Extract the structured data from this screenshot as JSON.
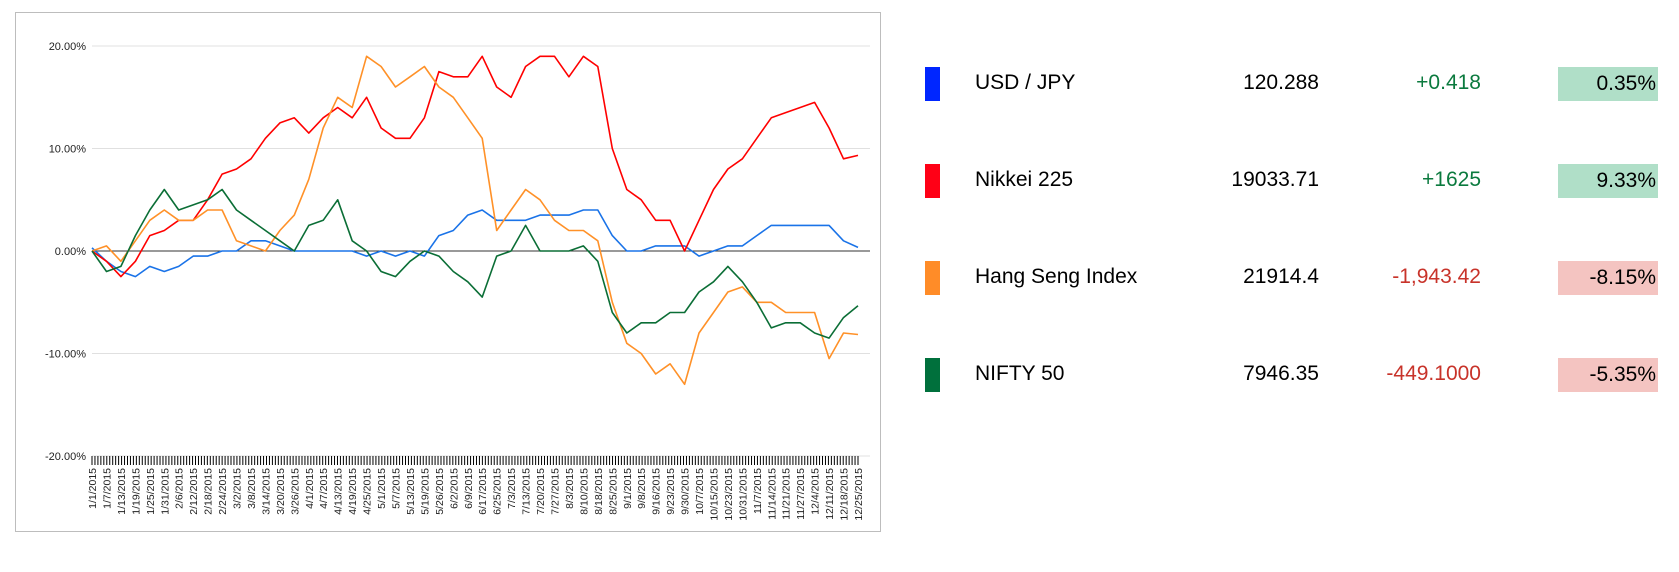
{
  "chart_data": {
    "type": "line",
    "title": "",
    "xlabel": "",
    "ylabel": "",
    "ylim": [
      -20,
      20
    ],
    "y_ticks": [
      "20.00%",
      "10.00%",
      "0.00%",
      "-10.00%",
      "-20.00%"
    ],
    "grid": true,
    "x": [
      "1/1/2015",
      "1/7/2015",
      "1/13/2015",
      "1/19/2015",
      "1/25/2015",
      "1/31/2015",
      "2/6/2015",
      "2/12/2015",
      "2/18/2015",
      "2/24/2015",
      "3/2/2015",
      "3/8/2015",
      "3/14/2015",
      "3/20/2015",
      "3/26/2015",
      "4/1/2015",
      "4/7/2015",
      "4/13/2015",
      "4/19/2015",
      "4/25/2015",
      "5/1/2015",
      "5/7/2015",
      "5/13/2015",
      "5/19/2015",
      "5/26/2015",
      "6/2/2015",
      "6/9/2015",
      "6/17/2015",
      "6/25/2015",
      "7/3/2015",
      "7/13/2015",
      "7/20/2015",
      "7/27/2015",
      "8/3/2015",
      "8/10/2015",
      "8/18/2015",
      "8/25/2015",
      "9/1/2015",
      "9/8/2015",
      "9/16/2015",
      "9/23/2015",
      "9/30/2015",
      "10/7/2015",
      "10/15/2015",
      "10/23/2015",
      "10/31/2015",
      "11/7/2015",
      "11/14/2015",
      "11/21/2015",
      "11/27/2015",
      "12/4/2015",
      "12/11/2015",
      "12/18/2015",
      "12/25/2015"
    ],
    "series": [
      {
        "name": "USD / JPY",
        "color": "#1a73e8",
        "values": [
          0.3,
          -1,
          -2,
          -2.5,
          -1.5,
          -2,
          -1.5,
          -0.5,
          -0.5,
          0,
          0,
          1,
          1,
          0.5,
          0,
          0,
          0,
          0,
          0,
          -0.5,
          0,
          -0.5,
          0,
          -0.5,
          1.5,
          2,
          3.5,
          4,
          3,
          3,
          3,
          3.5,
          3.5,
          3.5,
          4,
          4,
          1.5,
          0,
          0,
          0.5,
          0.5,
          0.5,
          -0.5,
          0,
          0.5,
          0.5,
          1.5,
          2.5,
          2.5,
          2.5,
          2.5,
          2.5,
          1,
          0.35
        ]
      },
      {
        "name": "Nikkei 225",
        "color": "#ff0000",
        "values": [
          0,
          -1,
          -2.5,
          -1,
          1.5,
          2,
          3,
          3,
          5,
          7.5,
          8,
          9,
          11,
          12.5,
          13,
          11.5,
          13,
          14,
          13,
          15,
          12,
          11,
          11,
          13,
          17.5,
          17,
          17,
          19,
          16,
          15,
          18,
          19,
          19,
          17,
          19,
          18,
          10,
          6,
          5,
          3,
          3,
          0,
          3,
          6,
          8,
          9,
          11,
          13,
          13.5,
          14,
          14.5,
          12,
          9,
          9.33
        ]
      },
      {
        "name": "Hang Seng Index",
        "color": "#ff9128",
        "values": [
          0,
          0.5,
          -1,
          1,
          3,
          4,
          3,
          3,
          4,
          4,
          1,
          0.5,
          0,
          2,
          3.5,
          7,
          12,
          15,
          14,
          19,
          18,
          16,
          17,
          18,
          16,
          15,
          13,
          11,
          2,
          4,
          6,
          5,
          3,
          2,
          2,
          1,
          -5,
          -9,
          -10,
          -12,
          -11,
          -13,
          -8,
          -6,
          -4,
          -3.5,
          -5,
          -5,
          -6,
          -6,
          -6,
          -10.5,
          -8,
          -8.15
        ]
      },
      {
        "name": "NIFTY 50",
        "color": "#0b6e36",
        "values": [
          0,
          -2,
          -1.5,
          1.5,
          4,
          6,
          4,
          4.5,
          5,
          6,
          4,
          3,
          2,
          1,
          0,
          2.5,
          3,
          5,
          1,
          0,
          -2,
          -2.5,
          -1,
          0,
          -0.5,
          -2,
          -3,
          -4.5,
          -0.5,
          0,
          2.5,
          0,
          0,
          0,
          0.5,
          -1,
          -6,
          -8,
          -7,
          -7,
          -6,
          -6,
          -4,
          -3,
          -1.5,
          -3,
          -5,
          -7.5,
          -7,
          -7,
          -8,
          -8.5,
          -6.5,
          -5.35
        ]
      }
    ]
  },
  "legend": [
    {
      "name": "USD / JPY",
      "color": "#0026ff",
      "value": "120.288",
      "change": "+0.418",
      "change_color": "#0b7a3e",
      "pct": "0.35%",
      "pct_bg": "#b0dfc8"
    },
    {
      "name": "Nikkei 225",
      "color": "#ff0016",
      "value": "19033.71",
      "change": "+1625",
      "change_color": "#0b7a3e",
      "pct": "9.33%",
      "pct_bg": "#b0dfc8"
    },
    {
      "name": "Hang Seng Index",
      "color": "#ff8c28",
      "value": "21914.4",
      "change": "-1,943.42",
      "change_color": "#c8332a",
      "pct": "-8.15%",
      "pct_bg": "#f4c4c1"
    },
    {
      "name": "NIFTY 50",
      "color": "#00703c",
      "value": "7946.35",
      "change": "-449.1000",
      "change_color": "#c8332a",
      "pct": "-5.35%",
      "pct_bg": "#f4c4c1"
    }
  ]
}
